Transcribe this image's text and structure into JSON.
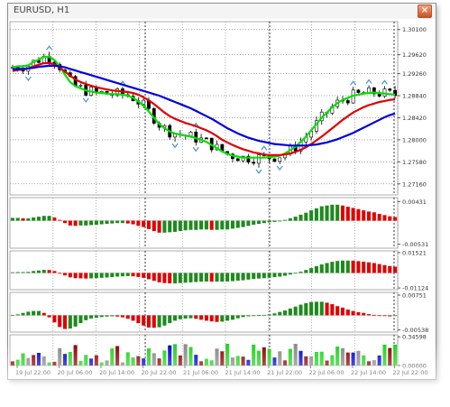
{
  "window": {
    "title": "EURUSD, H1",
    "close_glyph": "×",
    "close_icon": "close-icon"
  },
  "colors": {
    "bull": "#ffffff",
    "bear": "#000000",
    "candle_outline": "#000000",
    "ma_fast": "#00e000",
    "ma_mid": "#e00000",
    "ma_slow": "#0000e0",
    "hist_pos": "#1e8a1e",
    "hist_neg": "#e00000",
    "fractal": "#4a90d9",
    "vol_colors": [
      "#1ed21e",
      "#8b0000",
      "#0000cc",
      "#888888"
    ]
  },
  "chart_data": [
    {
      "type": "candlestick",
      "title": "EURUSD, H1",
      "y_ticks": [
        "1.30100",
        "1.29620",
        "1.29260",
        "1.28840",
        "1.28420",
        "1.28000",
        "1.27580",
        "1.27160"
      ],
      "y_tick_values": [
        1.301,
        1.2962,
        1.2926,
        1.2884,
        1.2842,
        1.28,
        1.2758,
        1.2716
      ],
      "ylim": [
        1.2695,
        1.3025
      ],
      "x_ticks": [
        "19 Jul 22:00",
        "20 Jul 06:00",
        "20 Jul 14:00",
        "20 Jul 22:00",
        "21 Jul 06:00",
        "21 Jul 14:00",
        "21 Jul 22:00",
        "22 Jul 06:00",
        "22 Jul 14:00",
        "22 Jul 22:00"
      ],
      "bar_count": 74,
      "series": [
        {
          "name": "",
          "kind": "ma_fast",
          "values": [
            1.2938,
            1.294,
            1.294,
            1.2942,
            1.2948,
            1.2953,
            1.2958,
            1.2958,
            1.2952,
            1.294,
            1.2924,
            1.291,
            1.2902,
            1.2898,
            1.2894,
            1.2892,
            1.289,
            1.2889,
            1.2888,
            1.2887,
            1.2887,
            1.2886,
            1.2884,
            1.288,
            1.2873,
            1.2865,
            1.2854,
            1.2842,
            1.283,
            1.2822,
            1.2816,
            1.2812,
            1.281,
            1.2808,
            1.2806,
            1.2803,
            1.28,
            1.2796,
            1.279,
            1.2784,
            1.2778,
            1.2773,
            1.277,
            1.2768,
            1.2766,
            1.2766,
            1.2766,
            1.2766,
            1.2766,
            1.2767,
            1.2768,
            1.277,
            1.2774,
            1.278,
            1.2787,
            1.2796,
            1.2806,
            1.2818,
            1.283,
            1.2842,
            1.2852,
            1.2862,
            1.287,
            1.2876,
            1.288,
            1.2884,
            1.2886,
            1.2888,
            1.2889,
            1.289,
            1.2889,
            1.2888,
            1.2887,
            1.2886
          ]
        },
        {
          "name": "",
          "kind": "ma_mid",
          "values": [
            1.2931,
            1.2933,
            1.2934,
            1.2936,
            1.294,
            1.2943,
            1.2946,
            1.2946,
            1.2944,
            1.2938,
            1.293,
            1.2922,
            1.2915,
            1.291,
            1.2906,
            1.2903,
            1.29,
            1.2898,
            1.2896,
            1.2894,
            1.2893,
            1.2892,
            1.2891,
            1.2889,
            1.2886,
            1.2881,
            1.2875,
            1.2868,
            1.286,
            1.2852,
            1.2845,
            1.284,
            1.2836,
            1.2832,
            1.2829,
            1.2826,
            1.2822,
            1.2818,
            1.2813,
            1.2807,
            1.28,
            1.2795,
            1.279,
            1.2786,
            1.2782,
            1.2779,
            1.2776,
            1.2774,
            1.2772,
            1.2771,
            1.2771,
            1.2771,
            1.2772,
            1.2774,
            1.2777,
            1.2781,
            1.2786,
            1.2792,
            1.2799,
            1.2806,
            1.2814,
            1.2822,
            1.283,
            1.2838,
            1.2845,
            1.2852,
            1.2857,
            1.2862,
            1.2866,
            1.2869,
            1.2872,
            1.2874,
            1.2876,
            1.2877
          ]
        },
        {
          "name": "",
          "kind": "ma_slow",
          "values": [
            1.2934,
            1.2935,
            1.2935,
            1.2936,
            1.2937,
            1.2939,
            1.294,
            1.2941,
            1.2941,
            1.294,
            1.2938,
            1.2935,
            1.2932,
            1.2929,
            1.2926,
            1.2923,
            1.292,
            1.2917,
            1.2914,
            1.2911,
            1.2908,
            1.2905,
            1.2902,
            1.2899,
            1.2896,
            1.2893,
            1.289,
            1.2887,
            1.2884,
            1.288,
            1.2876,
            1.2872,
            1.2868,
            1.2864,
            1.286,
            1.2855,
            1.285,
            1.2845,
            1.284,
            1.2834,
            1.2828,
            1.2822,
            1.2817,
            1.2812,
            1.2808,
            1.2804,
            1.2801,
            1.2798,
            1.2796,
            1.2794,
            1.2792,
            1.2791,
            1.279,
            1.2789,
            1.2789,
            1.2789,
            1.2789,
            1.279,
            1.2791,
            1.2793,
            1.2795,
            1.2798,
            1.2801,
            1.2805,
            1.2809,
            1.2813,
            1.2818,
            1.2823,
            1.2828,
            1.2833,
            1.2838,
            1.2843,
            1.2847,
            1.285
          ]
        }
      ]
    },
    {
      "type": "bar",
      "title": "",
      "y_ticks": [
        "0.00431",
        "-0.00531"
      ],
      "y_tick_values": [
        0.00431,
        -0.00531
      ],
      "ylim": [
        -0.0062,
        0.0052
      ]
    },
    {
      "type": "bar",
      "title": "",
      "y_ticks": [
        "0.01521",
        "-0.01124"
      ],
      "y_tick_values": [
        0.01521,
        -0.01124
      ],
      "ylim": [
        -0.0125,
        0.0165
      ]
    },
    {
      "type": "bar",
      "title": "",
      "y_ticks": [
        "0.00751",
        "-0.00538"
      ],
      "y_tick_values": [
        0.00751,
        -0.00538
      ],
      "ylim": [
        -0.0062,
        0.0085
      ]
    },
    {
      "type": "bar",
      "title": "",
      "y_ticks": [
        "0.34598",
        "0.00000"
      ],
      "y_tick_values": [
        0.34598,
        0.0
      ],
      "ylim": [
        0,
        0.37
      ]
    }
  ]
}
